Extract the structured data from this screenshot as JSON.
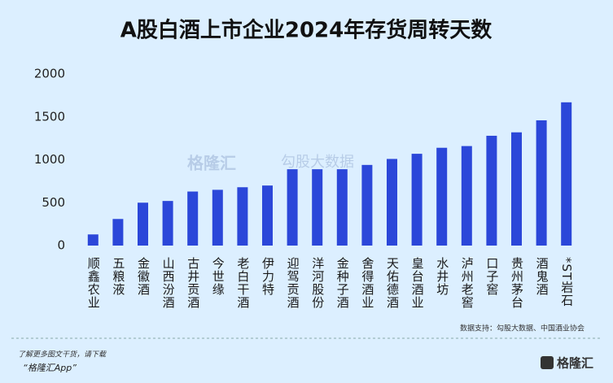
{
  "chart_data": {
    "type": "bar",
    "title": "A股白酒上市企业2024年存货周转天数",
    "categories": [
      "顺鑫农业",
      "五粮液",
      "金徽酒",
      "山西汾酒",
      "古井贡酒",
      "今世缘",
      "老白干酒",
      "伊力特",
      "迎驾贡酒",
      "洋河股份",
      "金种子酒",
      "舍得酒业",
      "天佑德酒",
      "皇台酒业",
      "水井坊",
      "泸州老窖",
      "口子窖",
      "贵州茅台",
      "酒鬼酒",
      "*ST岩石"
    ],
    "values": [
      130,
      310,
      500,
      520,
      630,
      650,
      680,
      700,
      890,
      890,
      890,
      940,
      1010,
      1070,
      1140,
      1160,
      1280,
      1320,
      1460,
      1670
    ],
    "color": "#2b47d9",
    "ylim": [
      0,
      2000
    ],
    "yticks": [
      0,
      500,
      1000,
      1500,
      2000
    ],
    "grid": false,
    "source": "数据支持：勾股大数据、中国酒业协会"
  },
  "watermark": {
    "brand": "格隆汇",
    "partner": "勾股大数据"
  },
  "footer": {
    "line1": "了解更多图文干货，请下载",
    "line2": "“格隆汇App”",
    "logo": "格隆汇"
  }
}
